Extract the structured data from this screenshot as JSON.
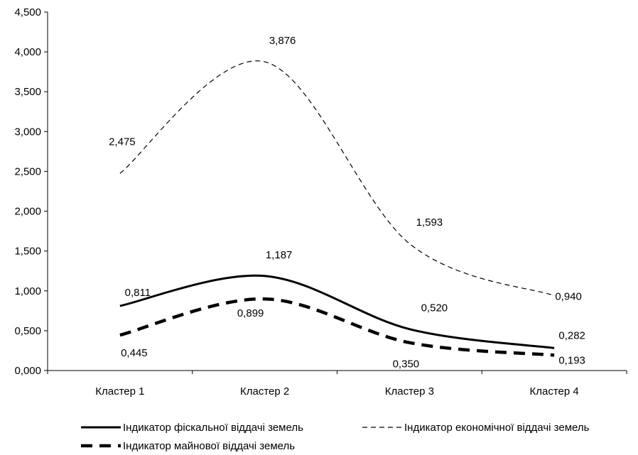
{
  "chart_data": {
    "type": "line",
    "categories": [
      "Кластер 1",
      "Кластер 2",
      "Кластер 3",
      "Кластер 4"
    ],
    "y_ticks": [
      "0,000",
      "0,500",
      "1,000",
      "1,500",
      "2,000",
      "2,500",
      "3,000",
      "3,500",
      "4,000",
      "4,500"
    ],
    "ylim": [
      0,
      4.5
    ],
    "grid": false,
    "legend_position": "bottom",
    "series": [
      {
        "name": "Індикатор фіскальної віддачі земель",
        "values": [
          0.811,
          1.187,
          0.52,
          0.282
        ],
        "labels": [
          "0,811",
          "1,187",
          "0,520",
          "0,282"
        ],
        "style": "solid",
        "color": "#000000"
      },
      {
        "name": "Індикатор економічної віддачі земель",
        "values": [
          2.475,
          3.876,
          1.593,
          0.94
        ],
        "labels": [
          "2,475",
          "3,876",
          "1,593",
          "0,940"
        ],
        "style": "dashed-thin",
        "color": "#000000"
      },
      {
        "name": "Індикатор майнової віддачі земель",
        "values": [
          0.445,
          0.899,
          0.35,
          0.193
        ],
        "labels": [
          "0,445",
          "0,899",
          "0,350",
          "0,193"
        ],
        "style": "dashed-thick",
        "color": "#000000"
      }
    ]
  }
}
